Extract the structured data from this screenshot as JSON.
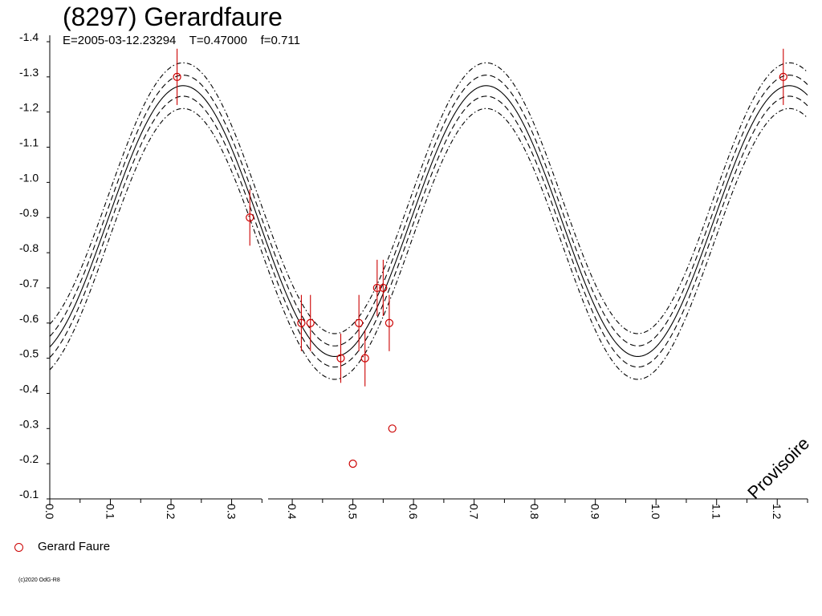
{
  "title": "(8297) Gerardfaure",
  "subtitle": "E=2005-03-12.23294    T=0.47000    f=0.711",
  "watermark": "Provisoire",
  "copyright": "(c)2020 OdG-R8",
  "legend": [
    {
      "name": "Gerard Faure",
      "color": "#cc0000",
      "marker": "circle"
    }
  ],
  "chart_data": {
    "type": "scatter",
    "title": "(8297) Gerardfaure",
    "subtitle": "E=2005-03-12.23294    T=0.47000    f=0.711",
    "xlim": [
      0.0,
      1.25
    ],
    "ylim": [
      -1.4,
      -0.1
    ],
    "y_inverted": true,
    "x_ticks": [
      "0.0",
      "0.1",
      "0.2",
      "0.3",
      "0.4",
      "0.5",
      "0.6",
      "0.7",
      "0.8",
      "0.9",
      "1.0",
      "1.1",
      "1.2"
    ],
    "y_ticks": [
      "-1.4",
      "-1.3",
      "-1.2",
      "-1.1",
      "-1.0",
      "-0.9",
      "-0.8",
      "-0.7",
      "-0.6",
      "-0.5",
      "-0.4",
      "-0.3",
      "-0.2",
      "-0.1"
    ],
    "grid": false,
    "legend_position": "bottom-left",
    "series": [
      {
        "name": "Gerard Faure",
        "color": "#cc0000",
        "points": [
          {
            "x": 0.21,
            "y": -1.3,
            "err": 0.08
          },
          {
            "x": 0.33,
            "y": -0.9,
            "err": 0.08
          },
          {
            "x": 0.415,
            "y": -0.6,
            "err": 0.08
          },
          {
            "x": 0.43,
            "y": -0.6,
            "err": 0.08
          },
          {
            "x": 0.48,
            "y": -0.5,
            "err": 0.07
          },
          {
            "x": 0.5,
            "y": -0.2,
            "err": 0.0
          },
          {
            "x": 0.51,
            "y": -0.6,
            "err": 0.08
          },
          {
            "x": 0.52,
            "y": -0.5,
            "err": 0.08
          },
          {
            "x": 0.54,
            "y": -0.7,
            "err": 0.08
          },
          {
            "x": 0.55,
            "y": -0.7,
            "err": 0.08
          },
          {
            "x": 0.56,
            "y": -0.6,
            "err": 0.08
          },
          {
            "x": 0.565,
            "y": -0.3,
            "err": 0.0
          },
          {
            "x": 1.21,
            "y": -1.3,
            "err": 0.08
          }
        ]
      }
    ],
    "model": {
      "period": 0.5,
      "mean": -0.89,
      "amplitude": 0.385,
      "phase_max": 0.22,
      "band_dashed": 0.03,
      "band_dashdot": 0.065
    }
  }
}
